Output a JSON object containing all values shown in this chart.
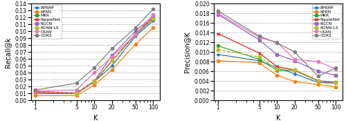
{
  "K": [
    1,
    5,
    10,
    20,
    50,
    100
  ],
  "recall": {
    "BPRMF": [
      0.01,
      0.01,
      0.027,
      0.05,
      0.093,
      0.115
    ],
    "KPRN": [
      0.007,
      0.007,
      0.022,
      0.044,
      0.081,
      0.105
    ],
    "MKR": [
      0.013,
      0.01,
      0.027,
      0.057,
      0.095,
      0.118
    ],
    "RippleNet": [
      0.012,
      0.01,
      0.027,
      0.057,
      0.096,
      0.12
    ],
    "KGCN": [
      0.013,
      0.011,
      0.028,
      0.065,
      0.1,
      0.122
    ],
    "KGNN-LS": [
      0.013,
      0.01,
      0.027,
      0.057,
      0.095,
      0.118
    ],
    "CKAN": [
      0.014,
      0.015,
      0.04,
      0.063,
      0.095,
      0.124
    ],
    "CGRS": [
      0.015,
      0.025,
      0.047,
      0.075,
      0.105,
      0.132
    ]
  },
  "precision": {
    "BPRMF": [
      0.0095,
      0.0082,
      0.0068,
      0.0055,
      0.0037,
      0.0036
    ],
    "KPRN": [
      0.0082,
      0.0078,
      0.0052,
      0.0039,
      0.0033,
      0.0028
    ],
    "MKR": [
      0.0113,
      0.0085,
      0.0062,
      0.0062,
      0.004,
      0.0037
    ],
    "RippleNet": [
      0.0138,
      0.0098,
      0.007,
      0.0063,
      0.0041,
      0.0037
    ],
    "KGCN": [
      0.0178,
      0.0125,
      0.0095,
      0.0082,
      0.006,
      0.0052
    ],
    "KGNN-LS": [
      0.0105,
      0.009,
      0.0065,
      0.0063,
      0.0041,
      0.0038
    ],
    "CKAN": [
      0.018,
      0.013,
      0.012,
      0.0085,
      0.008,
      0.0065
    ],
    "CGRS": [
      0.0185,
      0.0133,
      0.0119,
      0.01,
      0.005,
      0.0067
    ]
  },
  "colors": {
    "BPRMF": "#1f77b4",
    "KPRN": "#ff7f0e",
    "MKR": "#2ca02c",
    "RippleNet": "#d62728",
    "KGCN": "#9467bd",
    "KGNN-LS": "#bcbd22",
    "CKAN": "#e377c2",
    "CGRS": "#7f7f7f"
  },
  "markers": {
    "BPRMF": "*",
    "KPRN": "o",
    "MKR": "o",
    "RippleNet": "x",
    "KGCN": "s",
    "KGNN-LS": "D",
    "CKAN": "o",
    "CGRS": "o"
  },
  "linestyles": {
    "BPRMF": "-",
    "KPRN": "-",
    "MKR": "-",
    "RippleNet": "-",
    "KGCN": "-",
    "KGNN-LS": "--",
    "CKAN": "-",
    "CGRS": "-"
  },
  "recall_ylim": [
    0.0,
    0.14
  ],
  "recall_yticks": [
    0.0,
    0.01,
    0.02,
    0.03,
    0.04,
    0.05,
    0.06,
    0.07,
    0.08,
    0.09,
    0.1,
    0.11,
    0.12,
    0.13,
    0.14
  ],
  "precision_ylim": [
    0.0,
    0.02
  ],
  "precision_yticks": [
    0.0,
    0.002,
    0.004,
    0.006,
    0.008,
    0.01,
    0.012,
    0.014,
    0.016,
    0.018,
    0.02
  ],
  "xlabel": "K",
  "ylabel_recall": "Recall@k",
  "ylabel_precision": "Precision@K"
}
